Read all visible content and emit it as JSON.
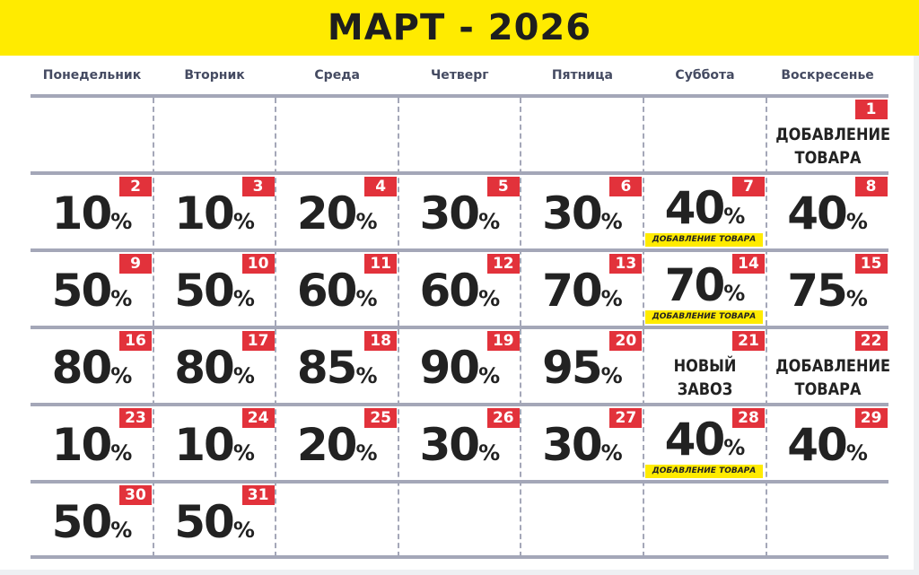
{
  "title": "МАРТ - 2026",
  "weekdays": [
    "Понедельник",
    "Вторник",
    "Среда",
    "Четверг",
    "Пятница",
    "Суббота",
    "Воскресенье"
  ],
  "colors": {
    "header": "#ffeb00",
    "badge": "#e2323b",
    "grid": "#a4a7b8"
  },
  "percent_sign": "%",
  "weeks": [
    [
      null,
      null,
      null,
      null,
      null,
      null,
      {
        "day": "1",
        "text": [
          "ДОБАВЛЕНИЕ",
          "ТОВАРА"
        ]
      }
    ],
    [
      {
        "day": "2",
        "value": "10"
      },
      {
        "day": "3",
        "value": "10"
      },
      {
        "day": "4",
        "value": "20"
      },
      {
        "day": "5",
        "value": "30"
      },
      {
        "day": "6",
        "value": "30"
      },
      {
        "day": "7",
        "value": "40",
        "tag": "ДОБАВЛЕНИЕ ТОВАРА"
      },
      {
        "day": "8",
        "value": "40"
      }
    ],
    [
      {
        "day": "9",
        "value": "50"
      },
      {
        "day": "10",
        "value": "50"
      },
      {
        "day": "11",
        "value": "60"
      },
      {
        "day": "12",
        "value": "60"
      },
      {
        "day": "13",
        "value": "70"
      },
      {
        "day": "14",
        "value": "70",
        "tag": "ДОБАВЛЕНИЕ ТОВАРА"
      },
      {
        "day": "15",
        "value": "75"
      }
    ],
    [
      {
        "day": "16",
        "value": "80"
      },
      {
        "day": "17",
        "value": "80"
      },
      {
        "day": "18",
        "value": "85"
      },
      {
        "day": "19",
        "value": "90"
      },
      {
        "day": "20",
        "value": "95"
      },
      {
        "day": "21",
        "text": [
          "НОВЫЙ",
          "ЗАВОЗ"
        ]
      },
      {
        "day": "22",
        "text": [
          "ДОБАВЛЕНИЕ",
          "ТОВАРА"
        ]
      }
    ],
    [
      {
        "day": "23",
        "value": "10"
      },
      {
        "day": "24",
        "value": "10"
      },
      {
        "day": "25",
        "value": "20"
      },
      {
        "day": "26",
        "value": "30"
      },
      {
        "day": "27",
        "value": "30"
      },
      {
        "day": "28",
        "value": "40",
        "tag": "ДОБАВЛЕНИЕ ТОВАРА"
      },
      {
        "day": "29",
        "value": "40"
      }
    ],
    [
      {
        "day": "30",
        "value": "50"
      },
      {
        "day": "31",
        "value": "50"
      },
      null,
      null,
      null,
      null,
      null
    ]
  ]
}
